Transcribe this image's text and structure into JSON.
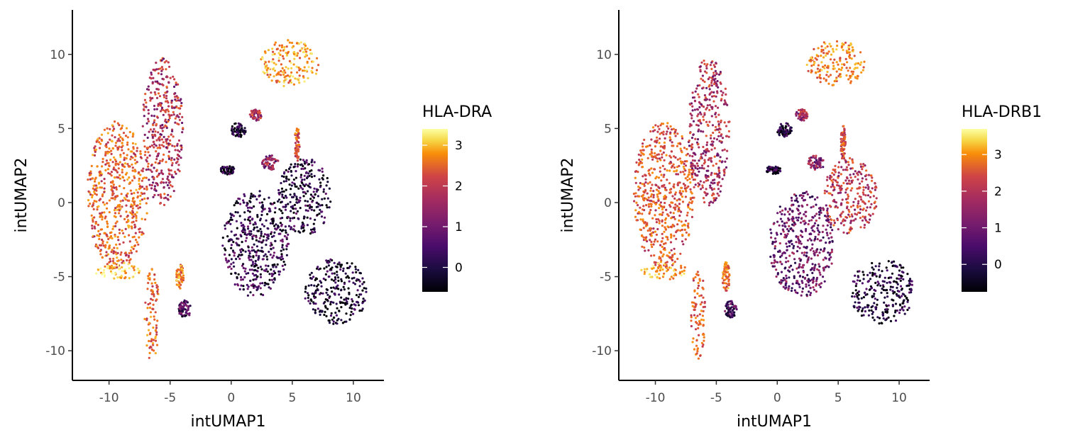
{
  "chart_data": [
    {
      "type": "scatter",
      "title": "",
      "xlabel": "intUMAP1",
      "ylabel": "intUMAP2",
      "xlim": [
        -13,
        12.5
      ],
      "ylim": [
        -12,
        13
      ],
      "xticks": [
        -10,
        -5,
        0,
        5,
        10
      ],
      "yticks": [
        -10,
        -5,
        0,
        5,
        10
      ],
      "xtick_labels": [
        "-10",
        "-5",
        "0",
        "5",
        "10"
      ],
      "ytick_labels": [
        "-10",
        "-5",
        "0",
        "5",
        "10"
      ],
      "grid": false,
      "legend": {
        "title": "HLA-DRA",
        "placement": "right",
        "range": [
          -0.6,
          3.4
        ],
        "ticks": [
          0,
          1,
          2,
          3
        ],
        "tick_labels": [
          "0",
          "1",
          "2",
          "3"
        ],
        "colormap": "inferno"
      },
      "clusters": [
        {
          "name": "left-lobe",
          "cx": -9.3,
          "cy": 0.5,
          "rx": 2.5,
          "ry": 5,
          "value": 2.0
        },
        {
          "name": "left-stem",
          "cx": -6.5,
          "cy": -7.5,
          "rx": 0.6,
          "ry": 3.2,
          "value": 2.1
        },
        {
          "name": "left-arm",
          "cx": -9.3,
          "cy": -4.6,
          "rx": 1.9,
          "ry": 0.6,
          "value": 2.9
        },
        {
          "name": "upper-branch",
          "cx": -5.6,
          "cy": 4.8,
          "rx": 1.7,
          "ry": 5,
          "value": 1.3
        },
        {
          "name": "upper-right",
          "cx": 4.8,
          "cy": 9.4,
          "rx": 2.4,
          "ry": 1.6,
          "value": 2.5
        },
        {
          "name": "small-upper",
          "cx": 0.6,
          "cy": 4.9,
          "rx": 0.6,
          "ry": 0.5,
          "value": -0.3
        },
        {
          "name": "small-mid",
          "cx": -0.3,
          "cy": 2.2,
          "rx": 0.6,
          "ry": 0.3,
          "value": -0.2
        },
        {
          "name": "small-dot",
          "cx": 2.0,
          "cy": 5.9,
          "rx": 0.5,
          "ry": 0.4,
          "value": 1.2
        },
        {
          "name": "thin-streak",
          "cx": 5.4,
          "cy": 4.0,
          "rx": 0.2,
          "ry": 1.2,
          "value": 1.8
        },
        {
          "name": "thin-streak-2",
          "cx": 3.2,
          "cy": 2.7,
          "rx": 0.7,
          "ry": 0.5,
          "value": 0.9
        },
        {
          "name": "middle-mass",
          "cx": 2.0,
          "cy": -2.8,
          "rx": 2.7,
          "ry": 3.6,
          "value": 0.0
        },
        {
          "name": "right-upper",
          "cx": 6.0,
          "cy": 0.4,
          "rx": 2.2,
          "ry": 2.6,
          "value": -0.1
        },
        {
          "name": "bottom-right",
          "cx": 8.6,
          "cy": -6.0,
          "rx": 2.6,
          "ry": 2.2,
          "value": -0.3
        },
        {
          "name": "small-left-1",
          "cx": -4.2,
          "cy": -5.0,
          "rx": 0.3,
          "ry": 1.0,
          "value": 2.3
        },
        {
          "name": "small-left-2",
          "cx": -3.8,
          "cy": -7.2,
          "rx": 0.5,
          "ry": 0.6,
          "value": 0.2
        }
      ]
    },
    {
      "type": "scatter",
      "title": "",
      "xlabel": "intUMAP1",
      "ylabel": "intUMAP2",
      "xlim": [
        -13,
        12.5
      ],
      "ylim": [
        -12,
        13
      ],
      "xticks": [
        -10,
        -5,
        0,
        5,
        10
      ],
      "yticks": [
        -10,
        -5,
        0,
        5,
        10
      ],
      "xtick_labels": [
        "-10",
        "-5",
        "0",
        "5",
        "10"
      ],
      "ytick_labels": [
        "-10",
        "-5",
        "0",
        "5",
        "10"
      ],
      "grid": false,
      "legend": {
        "title": "HLA-DRB1",
        "placement": "right",
        "range": [
          -0.75,
          3.7
        ],
        "ticks": [
          0,
          1,
          2,
          3
        ],
        "tick_labels": [
          "0",
          "1",
          "2",
          "3"
        ],
        "colormap": "inferno"
      },
      "clusters": [
        {
          "name": "left-lobe",
          "cx": -9.3,
          "cy": 0.5,
          "rx": 2.5,
          "ry": 5,
          "value": 2.0
        },
        {
          "name": "left-stem",
          "cx": -6.5,
          "cy": -7.5,
          "rx": 0.6,
          "ry": 3.2,
          "value": 2.1
        },
        {
          "name": "left-arm",
          "cx": -9.3,
          "cy": -4.6,
          "rx": 1.9,
          "ry": 0.6,
          "value": 2.9
        },
        {
          "name": "upper-branch",
          "cx": -5.6,
          "cy": 4.8,
          "rx": 1.7,
          "ry": 5,
          "value": 1.3
        },
        {
          "name": "upper-right",
          "cx": 4.8,
          "cy": 9.4,
          "rx": 2.4,
          "ry": 1.6,
          "value": 2.5
        },
        {
          "name": "small-upper",
          "cx": 0.6,
          "cy": 4.9,
          "rx": 0.6,
          "ry": 0.5,
          "value": -0.3
        },
        {
          "name": "small-mid",
          "cx": -0.3,
          "cy": 2.2,
          "rx": 0.6,
          "ry": 0.3,
          "value": -0.2
        },
        {
          "name": "small-dot",
          "cx": 2.0,
          "cy": 5.9,
          "rx": 0.5,
          "ry": 0.4,
          "value": 1.2
        },
        {
          "name": "thin-streak",
          "cx": 5.4,
          "cy": 4.0,
          "rx": 0.2,
          "ry": 1.2,
          "value": 1.8
        },
        {
          "name": "thin-streak-2",
          "cx": 3.2,
          "cy": 2.7,
          "rx": 0.7,
          "ry": 0.5,
          "value": 0.9
        },
        {
          "name": "middle-mass",
          "cx": 2.0,
          "cy": -2.8,
          "rx": 2.7,
          "ry": 3.6,
          "value": 0.6
        },
        {
          "name": "right-upper",
          "cx": 6.0,
          "cy": 0.4,
          "rx": 2.2,
          "ry": 2.6,
          "value": 1.5
        },
        {
          "name": "bottom-right",
          "cx": 8.6,
          "cy": -6.0,
          "rx": 2.6,
          "ry": 2.2,
          "value": -0.3
        },
        {
          "name": "small-left-1",
          "cx": -4.2,
          "cy": -5.0,
          "rx": 0.3,
          "ry": 1.0,
          "value": 2.3
        },
        {
          "name": "small-left-2",
          "cx": -3.8,
          "cy": -7.2,
          "rx": 0.5,
          "ry": 0.6,
          "value": 0.2
        }
      ]
    }
  ]
}
